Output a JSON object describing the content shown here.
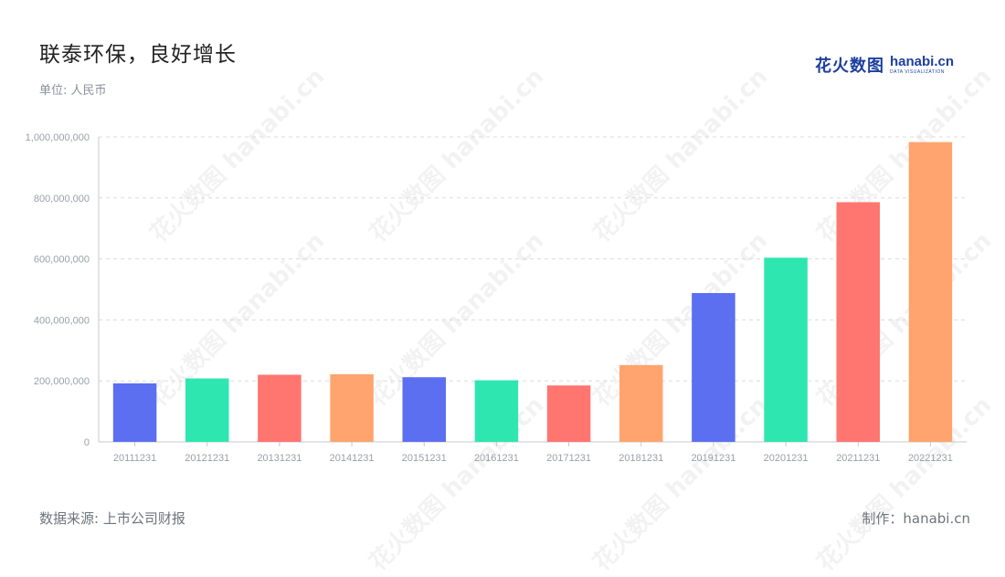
{
  "header": {
    "title": "联泰环保，良好增长",
    "unit": "单位: 人民币"
  },
  "brand": {
    "cn": "花火数图",
    "en": "hanabi.cn",
    "sub": "DATA VISUALIZATION"
  },
  "footer": {
    "source": "数据来源: 上市公司财报",
    "credit": "制作：hanabi.cn"
  },
  "chart_data": {
    "type": "bar",
    "categories": [
      "20111231",
      "20121231",
      "20131231",
      "20141231",
      "20151231",
      "20161231",
      "20171231",
      "20181231",
      "20191231",
      "20201231",
      "20211231",
      "20221231"
    ],
    "values": [
      192000000,
      208000000,
      220000000,
      222000000,
      212000000,
      202000000,
      185000000,
      252000000,
      488000000,
      604000000,
      786000000,
      983000000
    ],
    "colors": [
      "#5b6ff0",
      "#2ee6b0",
      "#ff7570",
      "#ffa46e",
      "#5b6ff0",
      "#2ee6b0",
      "#ff7570",
      "#ffa46e",
      "#5b6ff0",
      "#2ee6b0",
      "#ff7570",
      "#ffa46e"
    ],
    "yticks": [
      "0",
      "200,000,000",
      "400,000,000",
      "600,000,000",
      "800,000,000",
      "1,000,000,000"
    ],
    "ylim": [
      0,
      1000000000
    ],
    "grid": true
  }
}
